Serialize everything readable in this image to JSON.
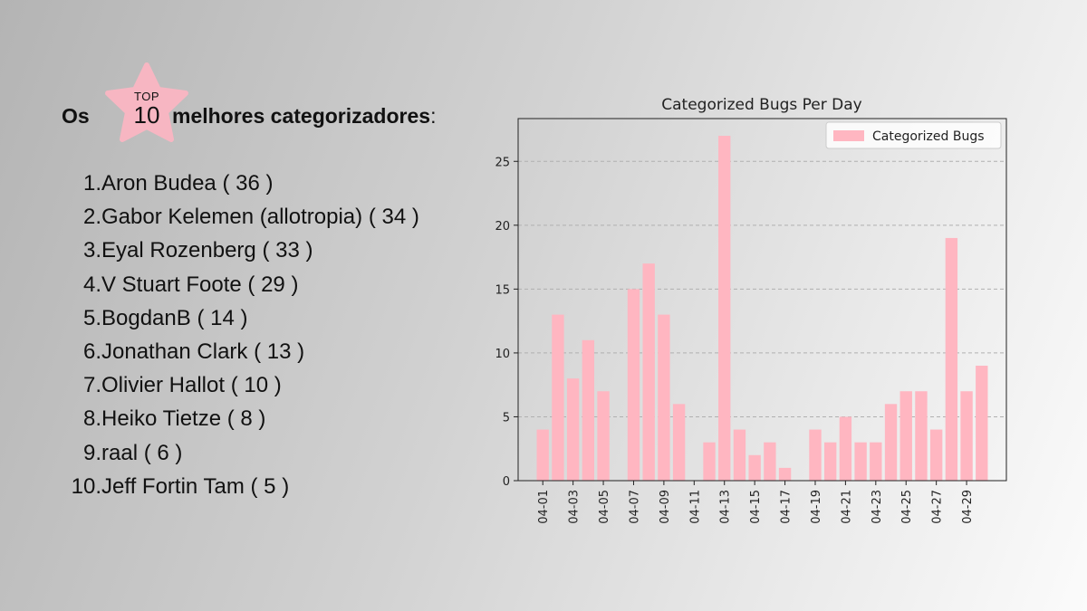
{
  "headline": {
    "prefix": "Os",
    "badge_top": "TOP",
    "badge_number": "10",
    "suffix": "melhores categorizadores",
    "suffix_punct": ":"
  },
  "ranking": [
    {
      "rank": "1.",
      "name": "Aron Budea",
      "count": "( 36 )"
    },
    {
      "rank": "2.",
      "name": "Gabor Kelemen (allotropia)",
      "count": "( 34 )"
    },
    {
      "rank": "3.",
      "name": "Eyal Rozenberg",
      "count": "( 33 )"
    },
    {
      "rank": "4.",
      "name": "V Stuart Foote",
      "count": "( 29 )"
    },
    {
      "rank": "5.",
      "name": "BogdanB",
      "count": "( 14 )"
    },
    {
      "rank": "6.",
      "name": "Jonathan Clark",
      "count": "( 13 )"
    },
    {
      "rank": "7.",
      "name": "Olivier Hallot",
      "count": "( 10 )"
    },
    {
      "rank": "8.",
      "name": "Heiko Tietze",
      "count": "( 8 )"
    },
    {
      "rank": "9.",
      "name": "raal",
      "count": "( 6 )"
    },
    {
      "rank": "10.",
      "name": "Jeff Fortin Tam",
      "count": "( 5 )"
    }
  ],
  "colors": {
    "star": "#f7b6c2",
    "bar": "#ffb6c1",
    "grid": "#b0b0b0"
  },
  "chart_data": {
    "type": "bar",
    "title": "Categorized Bugs Per Day",
    "xlabel": "",
    "ylabel": "",
    "categories": [
      "04-01",
      "04-02",
      "04-03",
      "04-04",
      "04-05",
      "04-06",
      "04-07",
      "04-08",
      "04-09",
      "04-10",
      "04-11",
      "04-12",
      "04-13",
      "04-14",
      "04-15",
      "04-16",
      "04-17",
      "04-18",
      "04-19",
      "04-20",
      "04-21",
      "04-22",
      "04-23",
      "04-24",
      "04-25",
      "04-26",
      "04-27",
      "04-28",
      "04-29",
      "04-30"
    ],
    "tick_labels": [
      "04-01",
      "04-03",
      "04-05",
      "04-07",
      "04-09",
      "04-11",
      "04-13",
      "04-15",
      "04-17",
      "04-19",
      "04-21",
      "04-23",
      "04-25",
      "04-27",
      "04-29"
    ],
    "series": [
      {
        "name": "Categorized Bugs",
        "values": [
          4,
          13,
          8,
          11,
          7,
          0,
          15,
          17,
          13,
          6,
          0,
          3,
          27,
          4,
          2,
          3,
          1,
          0,
          4,
          3,
          5,
          3,
          3,
          6,
          7,
          7,
          4,
          19,
          7,
          9
        ]
      }
    ],
    "ylim": [
      0,
      28.35
    ],
    "yticks": [
      0,
      5,
      10,
      15,
      20,
      25
    ],
    "grid": "y-dashed",
    "legend": "top-right"
  }
}
